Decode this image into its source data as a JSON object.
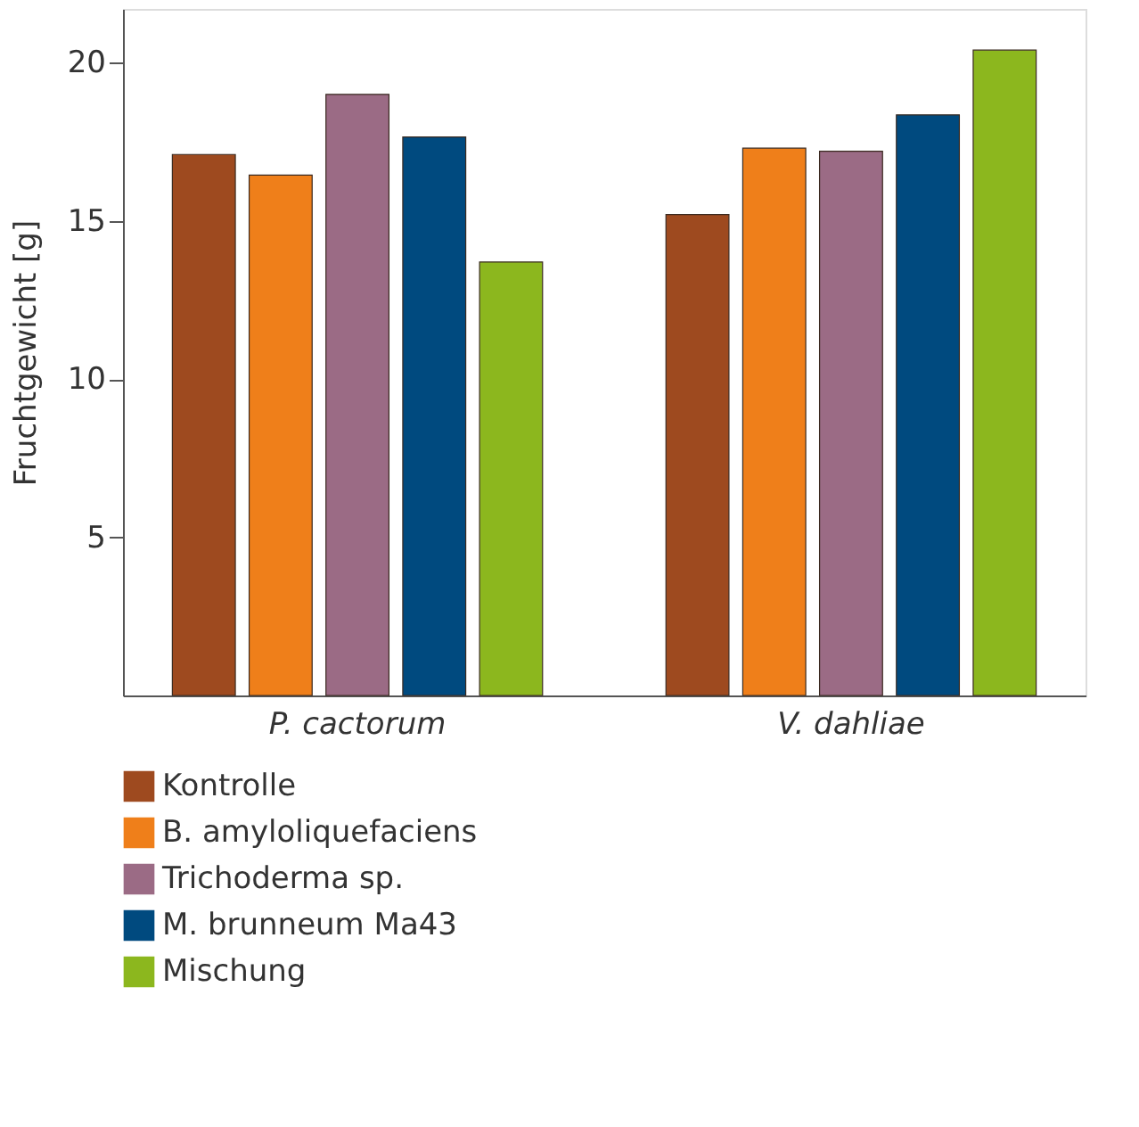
{
  "chart_data": {
    "type": "bar",
    "ylabel": "Fruchtgewicht [g]",
    "categories": [
      "P. cactorum",
      "V. dahliae"
    ],
    "series": [
      {
        "name": "Kontrolle",
        "color": "#9e4a1f",
        "values": [
          17.1,
          15.2
        ]
      },
      {
        "name": "B. amyloliquefaciens",
        "color": "#ef7f1a",
        "values": [
          16.45,
          17.3
        ]
      },
      {
        "name": "Trichoderma sp.",
        "color": "#9b6b85",
        "values": [
          19.0,
          17.2
        ]
      },
      {
        "name": "M. brunneum Ma43",
        "color": "#004a7f",
        "values": [
          17.65,
          18.35
        ]
      },
      {
        "name": "Mischung",
        "color": "#8cb71e",
        "values": [
          13.7,
          20.4
        ]
      }
    ],
    "ylim": [
      0,
      21.7
    ],
    "yticks": [
      5,
      10,
      15,
      20
    ],
    "grid": false,
    "legend": "bottom left"
  }
}
